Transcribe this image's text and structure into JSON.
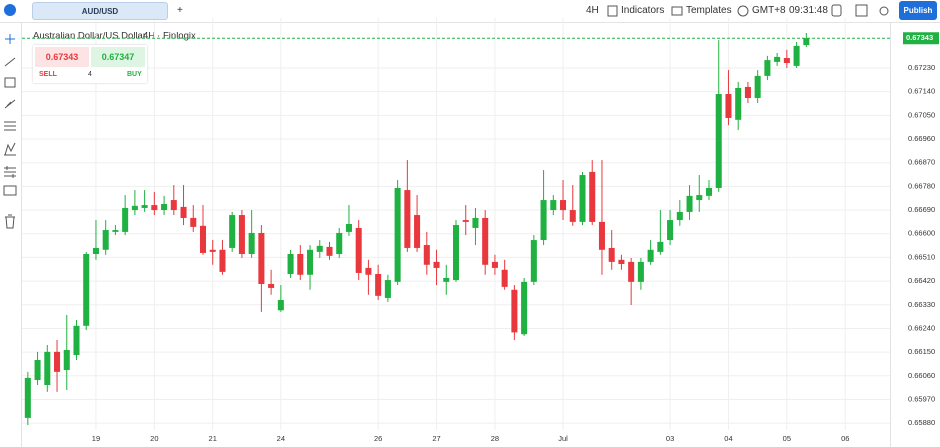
{
  "topbar": {
    "symbol": "AUD/USD",
    "add": "+",
    "interval": "4H",
    "indicators": "Indicators",
    "templates": "Templates",
    "timezone": "GMT+8",
    "clock": "09:31:48",
    "publish": "Publish"
  },
  "trade_panel": {
    "sell_price": "0.67343",
    "buy_price": "0.67347",
    "sell": "SELL",
    "quantity": "4",
    "buy": "BUY"
  },
  "chart_data": {
    "type": "candlestick",
    "title": "Australian Dollar/US Dollar",
    "interval": "4H",
    "source": "Finlogix",
    "up_color": "#1fb141",
    "down_color": "#e8383d",
    "grid": true,
    "ylim": [
      0.65854,
      0.6742
    ],
    "yticks": [
      {
        "value": 0.6723,
        "label": "0.67230"
      },
      {
        "value": 0.6714,
        "label": "0.67140"
      },
      {
        "value": 0.6705,
        "label": "0.67050"
      },
      {
        "value": 0.6696,
        "label": "0.66960"
      },
      {
        "value": 0.6687,
        "label": "0.66870"
      },
      {
        "value": 0.6678,
        "label": "0.66780"
      },
      {
        "value": 0.6669,
        "label": "0.66690"
      },
      {
        "value": 0.666,
        "label": "0.66600"
      },
      {
        "value": 0.6651,
        "label": "0.66510"
      },
      {
        "value": 0.6642,
        "label": "0.66420"
      },
      {
        "value": 0.6633,
        "label": "0.66330"
      },
      {
        "value": 0.6624,
        "label": "0.66240"
      },
      {
        "value": 0.6615,
        "label": "0.66150"
      },
      {
        "value": 0.6606,
        "label": "0.66060"
      },
      {
        "value": 0.6597,
        "label": "0.65970"
      },
      {
        "value": 0.6588,
        "label": "0.65880"
      }
    ],
    "xlim": [
      -0.6,
      88.6
    ],
    "xticks": [
      {
        "value": 7,
        "label": "19"
      },
      {
        "value": 13,
        "label": "20"
      },
      {
        "value": 19,
        "label": "21"
      },
      {
        "value": 26,
        "label": "24"
      },
      {
        "value": 36,
        "label": "26"
      },
      {
        "value": 42,
        "label": "27"
      },
      {
        "value": 48,
        "label": "28"
      },
      {
        "value": 55,
        "label": "Jul"
      },
      {
        "value": 66,
        "label": "03"
      },
      {
        "value": 72,
        "label": "04"
      },
      {
        "value": 78,
        "label": "05"
      },
      {
        "value": 84,
        "label": "06"
      }
    ],
    "last_price": 0.67343,
    "open": [
      0.659,
      0.66044,
      0.66025,
      0.66151,
      0.66082,
      0.66139,
      0.6625,
      0.66523,
      0.66539,
      0.66607,
      0.66607,
      0.6669,
      0.66698,
      0.66709,
      0.6669,
      0.66728,
      0.66702,
      0.6666,
      0.6663,
      0.66539,
      0.66539,
      0.66546,
      0.66671,
      0.66523,
      0.66603,
      0.66409,
      0.66309,
      0.66447,
      0.66523,
      0.66444,
      0.66531,
      0.6655,
      0.66523,
      0.66607,
      0.66622,
      0.6647,
      0.66447,
      0.66356,
      0.66417,
      0.66766,
      0.66671,
      0.66557,
      0.66493,
      0.66417,
      0.66424,
      0.66652,
      0.66622,
      0.6666,
      0.66493,
      0.66463,
      0.66387,
      0.66218,
      0.66417,
      0.66576,
      0.6669,
      0.66728,
      0.6669,
      0.66645,
      0.66835,
      0.66645,
      0.66546,
      0.66501,
      0.66493,
      0.66417,
      0.66493,
      0.66531,
      0.66576,
      0.66652,
      0.66683,
      0.66728,
      0.66744,
      0.66774,
      0.67131,
      0.67033,
      0.67158,
      0.67116,
      0.672,
      0.67253,
      0.67268,
      0.67238,
      0.67317
    ],
    "high": [
      0.66075,
      0.66151,
      0.66177,
      0.66196,
      0.66291,
      0.66272,
      0.66531,
      0.66652,
      0.66652,
      0.66633,
      0.66747,
      0.66766,
      0.66766,
      0.66759,
      0.66744,
      0.66785,
      0.66785,
      0.66709,
      0.66709,
      0.66576,
      0.66576,
      0.66683,
      0.6669,
      0.6669,
      0.66633,
      0.66463,
      0.66405,
      0.66539,
      0.66557,
      0.66557,
      0.66576,
      0.66569,
      0.66622,
      0.66709,
      0.66652,
      0.66501,
      0.66482,
      0.66444,
      0.66804,
      0.6688,
      0.66747,
      0.66607,
      0.66539,
      0.66482,
      0.66652,
      0.66709,
      0.66698,
      0.6669,
      0.6652,
      0.66501,
      0.66405,
      0.66432,
      0.66595,
      0.66842,
      0.66747,
      0.66804,
      0.66785,
      0.66835,
      0.6688,
      0.6688,
      0.66614,
      0.6652,
      0.66508,
      0.66508,
      0.66576,
      0.6669,
      0.6669,
      0.66728,
      0.66785,
      0.66823,
      0.66804,
      0.67336,
      0.67222,
      0.67177,
      0.67177,
      0.67222,
      0.67276,
      0.67287,
      0.67299,
      0.67329,
      0.67363
    ],
    "low": [
      0.65873,
      0.66025,
      0.65999,
      0.65999,
      0.66006,
      0.6612,
      0.66234,
      0.66501,
      0.6652,
      0.66595,
      0.66595,
      0.66671,
      0.66683,
      0.66671,
      0.66671,
      0.66671,
      0.66633,
      0.66607,
      0.6652,
      0.66482,
      0.66444,
      0.66531,
      0.66508,
      0.66508,
      0.66303,
      0.66368,
      0.66303,
      0.66432,
      0.66424,
      0.66387,
      0.66508,
      0.66501,
      0.66508,
      0.66592,
      0.66424,
      0.66368,
      0.66348,
      0.66341,
      0.66405,
      0.66531,
      0.66531,
      0.66444,
      0.66405,
      0.66368,
      0.66417,
      0.66595,
      0.66557,
      0.66444,
      0.66444,
      0.66387,
      0.66196,
      0.66211,
      0.66405,
      0.66557,
      0.66671,
      0.66652,
      0.6663,
      0.66633,
      0.66633,
      0.66444,
      0.66463,
      0.66463,
      0.66329,
      0.66387,
      0.66482,
      0.6652,
      0.66557,
      0.6663,
      0.66652,
      0.66683,
      0.66728,
      0.66759,
      0.67013,
      0.66994,
      0.67097,
      0.67097,
      0.67184,
      0.67238,
      0.6723,
      0.6723,
      0.6731
    ],
    "close": [
      0.66052,
      0.6612,
      0.66151,
      0.66075,
      0.66158,
      0.6625,
      0.66523,
      0.66546,
      0.66614,
      0.66614,
      0.66698,
      0.66706,
      0.66709,
      0.6669,
      0.66713,
      0.6669,
      0.6666,
      0.66626,
      0.66527,
      0.66531,
      0.66455,
      0.66671,
      0.66523,
      0.66603,
      0.66409,
      0.66394,
      0.66348,
      0.66523,
      0.66444,
      0.66539,
      0.66554,
      0.66516,
      0.66603,
      0.66637,
      0.66451,
      0.66444,
      0.66364,
      0.66424,
      0.66774,
      0.66546,
      0.66546,
      0.66482,
      0.6647,
      0.66432,
      0.66633,
      0.66645,
      0.6666,
      0.66482,
      0.6647,
      0.66398,
      0.66225,
      0.66417,
      0.66576,
      0.66728,
      0.66728,
      0.6669,
      0.66645,
      0.66823,
      0.66645,
      0.66539,
      0.66493,
      0.66485,
      0.66417,
      0.66493,
      0.66539,
      0.66569,
      0.66652,
      0.66683,
      0.66744,
      0.66747,
      0.66774,
      0.67131,
      0.6704,
      0.67154,
      0.67116,
      0.672,
      0.6726,
      0.67272,
      0.67249,
      0.67314,
      0.67343
    ]
  }
}
